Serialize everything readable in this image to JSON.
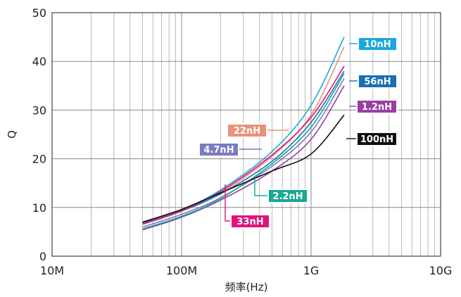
{
  "chart_data": {
    "type": "line",
    "title": "",
    "xlabel": "频率(Hz)",
    "ylabel": "Q",
    "x_scale": "log",
    "xlim": [
      10000000,
      10000000000
    ],
    "ylim": [
      0,
      50
    ],
    "x_ticks": [
      10000000,
      100000000,
      1000000000,
      10000000000
    ],
    "x_tick_labels": [
      "10M",
      "100M",
      "1G",
      "10G"
    ],
    "y_ticks": [
      0,
      10,
      20,
      30,
      40,
      50
    ],
    "y_tick_labels": [
      "0",
      "10",
      "20",
      "30",
      "40",
      "50"
    ],
    "grid": true,
    "series": [
      {
        "name": "10nH",
        "color": "#1aa7dd",
        "x": [
          50000000,
          100000000,
          200000000,
          500000000,
          1000000000,
          1800000000
        ],
        "y": [
          6.8,
          9.5,
          13.6,
          21.5,
          31.0,
          45.0
        ]
      },
      {
        "name": "22nH",
        "color": "#e8937a",
        "x": [
          50000000,
          100000000,
          200000000,
          500000000,
          1000000000,
          1800000000
        ],
        "y": [
          6.5,
          9.2,
          13.0,
          20.5,
          29.0,
          43.0
        ]
      },
      {
        "name": "56nH",
        "color": "#1a6fb5",
        "x": [
          50000000,
          100000000,
          200000000,
          500000000,
          1000000000,
          1800000000
        ],
        "y": [
          6.6,
          9.3,
          12.8,
          19.5,
          27.5,
          38.0
        ]
      },
      {
        "name": "1.2nH",
        "color": "#9a3ea3",
        "x": [
          50000000,
          100000000,
          200000000,
          500000000,
          1000000000,
          1800000000
        ],
        "y": [
          5.4,
          8.0,
          11.5,
          17.5,
          24.0,
          35.0
        ]
      },
      {
        "name": "4.7nH",
        "color": "#7b7bc4",
        "x": [
          50000000,
          100000000,
          200000000,
          500000000,
          1000000000,
          1800000000
        ],
        "y": [
          6.0,
          8.6,
          12.0,
          18.5,
          25.5,
          36.5
        ]
      },
      {
        "name": "2.2nH",
        "color": "#1aa894",
        "x": [
          50000000,
          100000000,
          200000000,
          500000000,
          1000000000,
          1800000000
        ],
        "y": [
          5.6,
          8.2,
          11.8,
          19.0,
          26.5,
          37.5
        ]
      },
      {
        "name": "33nH",
        "color": "#e0147c",
        "x": [
          50000000,
          100000000,
          200000000,
          500000000,
          1000000000,
          1800000000
        ],
        "y": [
          6.7,
          9.4,
          13.3,
          20.8,
          28.5,
          39.0
        ]
      },
      {
        "name": "100nH",
        "color": "#111111",
        "x": [
          50000000,
          100000000,
          200000000,
          500000000,
          1000000000,
          1800000000
        ],
        "y": [
          7.0,
          9.6,
          13.0,
          17.5,
          21.0,
          29.0
        ]
      }
    ],
    "labels": [
      {
        "text": "10nH",
        "color": "#1aa7dd",
        "series": "10nH"
      },
      {
        "text": "56nH",
        "color": "#1a6fb5",
        "series": "56nH"
      },
      {
        "text": "1.2nH",
        "color": "#9a3ea3",
        "series": "1.2nH"
      },
      {
        "text": "100nH",
        "color": "#111111",
        "series": "100nH"
      },
      {
        "text": "22nH",
        "color": "#e8937a",
        "series": "22nH"
      },
      {
        "text": "4.7nH",
        "color": "#7b7bc4",
        "series": "4.7nH"
      },
      {
        "text": "2.2nH",
        "color": "#1aa894",
        "series": "2.2nH"
      },
      {
        "text": "33nH",
        "color": "#e0147c",
        "series": "33nH"
      }
    ]
  }
}
